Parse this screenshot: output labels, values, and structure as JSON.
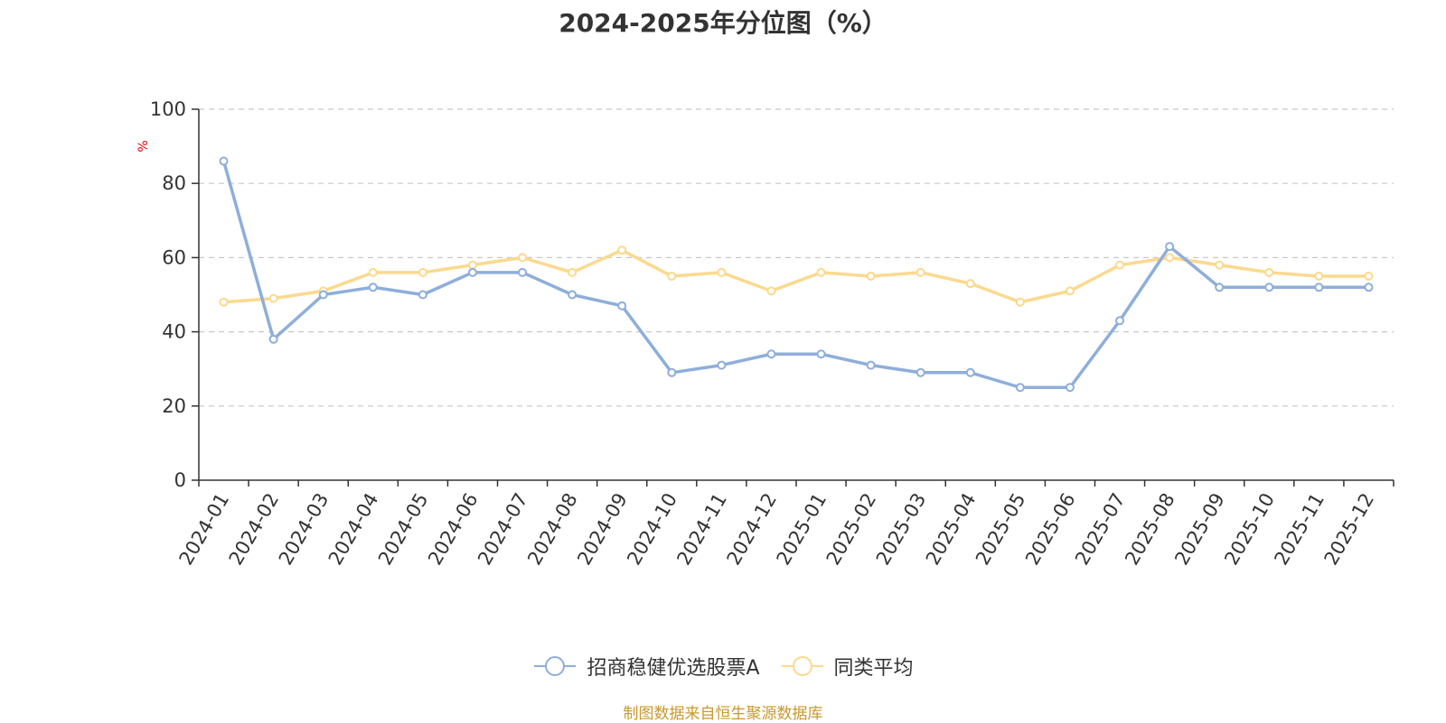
{
  "chart_data": {
    "type": "line",
    "title": "2024-2025年分位图（%）",
    "ylabel": "%",
    "ylim": [
      0,
      100
    ],
    "yticks": [
      0,
      20,
      40,
      60,
      80,
      100
    ],
    "grid": true,
    "legend_position": "bottom",
    "categories": [
      "2024-01",
      "2024-02",
      "2024-03",
      "2024-04",
      "2024-05",
      "2024-06",
      "2024-07",
      "2024-08",
      "2024-09",
      "2024-10",
      "2024-11",
      "2024-12",
      "2025-01",
      "2025-02",
      "2025-03",
      "2025-04",
      "2025-05",
      "2025-06",
      "2025-07",
      "2025-08",
      "2025-09",
      "2025-10",
      "2025-11",
      "2025-12"
    ],
    "series": [
      {
        "name": "招商稳健优选股票A",
        "color": "#8eaedb",
        "values": [
          86,
          38,
          50,
          52,
          50,
          56,
          56,
          50,
          47,
          29,
          31,
          34,
          34,
          31,
          29,
          29,
          25,
          25,
          43,
          63,
          52,
          52,
          52,
          52
        ]
      },
      {
        "name": "同类平均",
        "color": "#fbd98e",
        "values": [
          48,
          49,
          51,
          56,
          56,
          58,
          60,
          56,
          62,
          55,
          56,
          51,
          56,
          55,
          56,
          53,
          48,
          51,
          58,
          60,
          58,
          56,
          55,
          55
        ]
      }
    ]
  },
  "source_text": "制图数据来自恒生聚源数据库"
}
